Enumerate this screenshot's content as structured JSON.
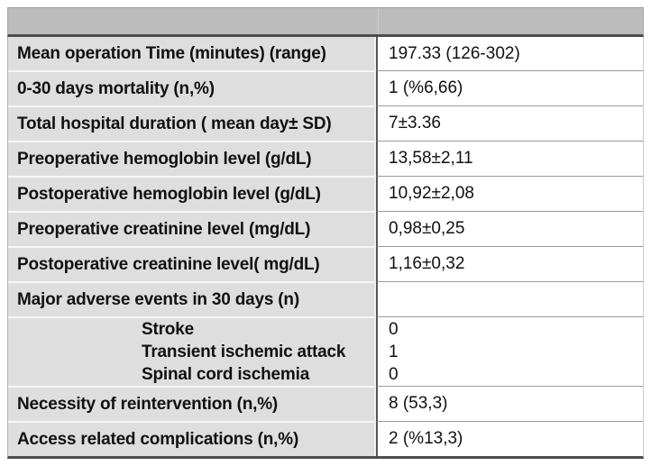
{
  "table": {
    "title": "surgical-outcomes-table",
    "header": {
      "left": "",
      "right": ""
    },
    "rows": [
      {
        "label": "Mean operation Time (minutes) (range)",
        "value": "197.33 (126-302)"
      },
      {
        "label": "0-30 days mortality (n,%)",
        "value": "1 (%6,66)"
      },
      {
        "label": "Total hospital duration ( mean day± SD)",
        "value": "7±3.36"
      },
      {
        "label": "Preoperative hemoglobin level (g/dL)",
        "value": "13,58±2,11"
      },
      {
        "label": "Postoperative hemoglobin level (g/dL)",
        "value": "10,92±2,08"
      },
      {
        "label": "Preoperative creatinine level (mg/dL)",
        "value": "0,98±0,25"
      },
      {
        "label": "Postoperative creatinine level( mg/dL)",
        "value": "1,16±0,32"
      },
      {
        "label": "Major adverse events in 30 days (n)",
        "value": ""
      },
      {
        "items": [
          {
            "label": "Stroke",
            "value": "0"
          },
          {
            "label": "Transient ischemic attack",
            "value": "1"
          },
          {
            "label": "Spinal cord ischemia",
            "value": "0"
          }
        ]
      },
      {
        "label": "Necessity of reintervention (n,%)",
        "value": "8 (53,3)"
      },
      {
        "label": "Access related complications (n,%)",
        "value": "2 (%13,3)"
      }
    ],
    "colors": {
      "header_bg": "#bcbcbc",
      "label_bg": "#dedede",
      "value_bg": "#ffffff",
      "divider": "#565656",
      "heavy_border": "#4d4d4d",
      "row_separator_light": "#f6f6f6",
      "row_separator_gray": "#9b9b9b",
      "text": "#111111"
    }
  }
}
